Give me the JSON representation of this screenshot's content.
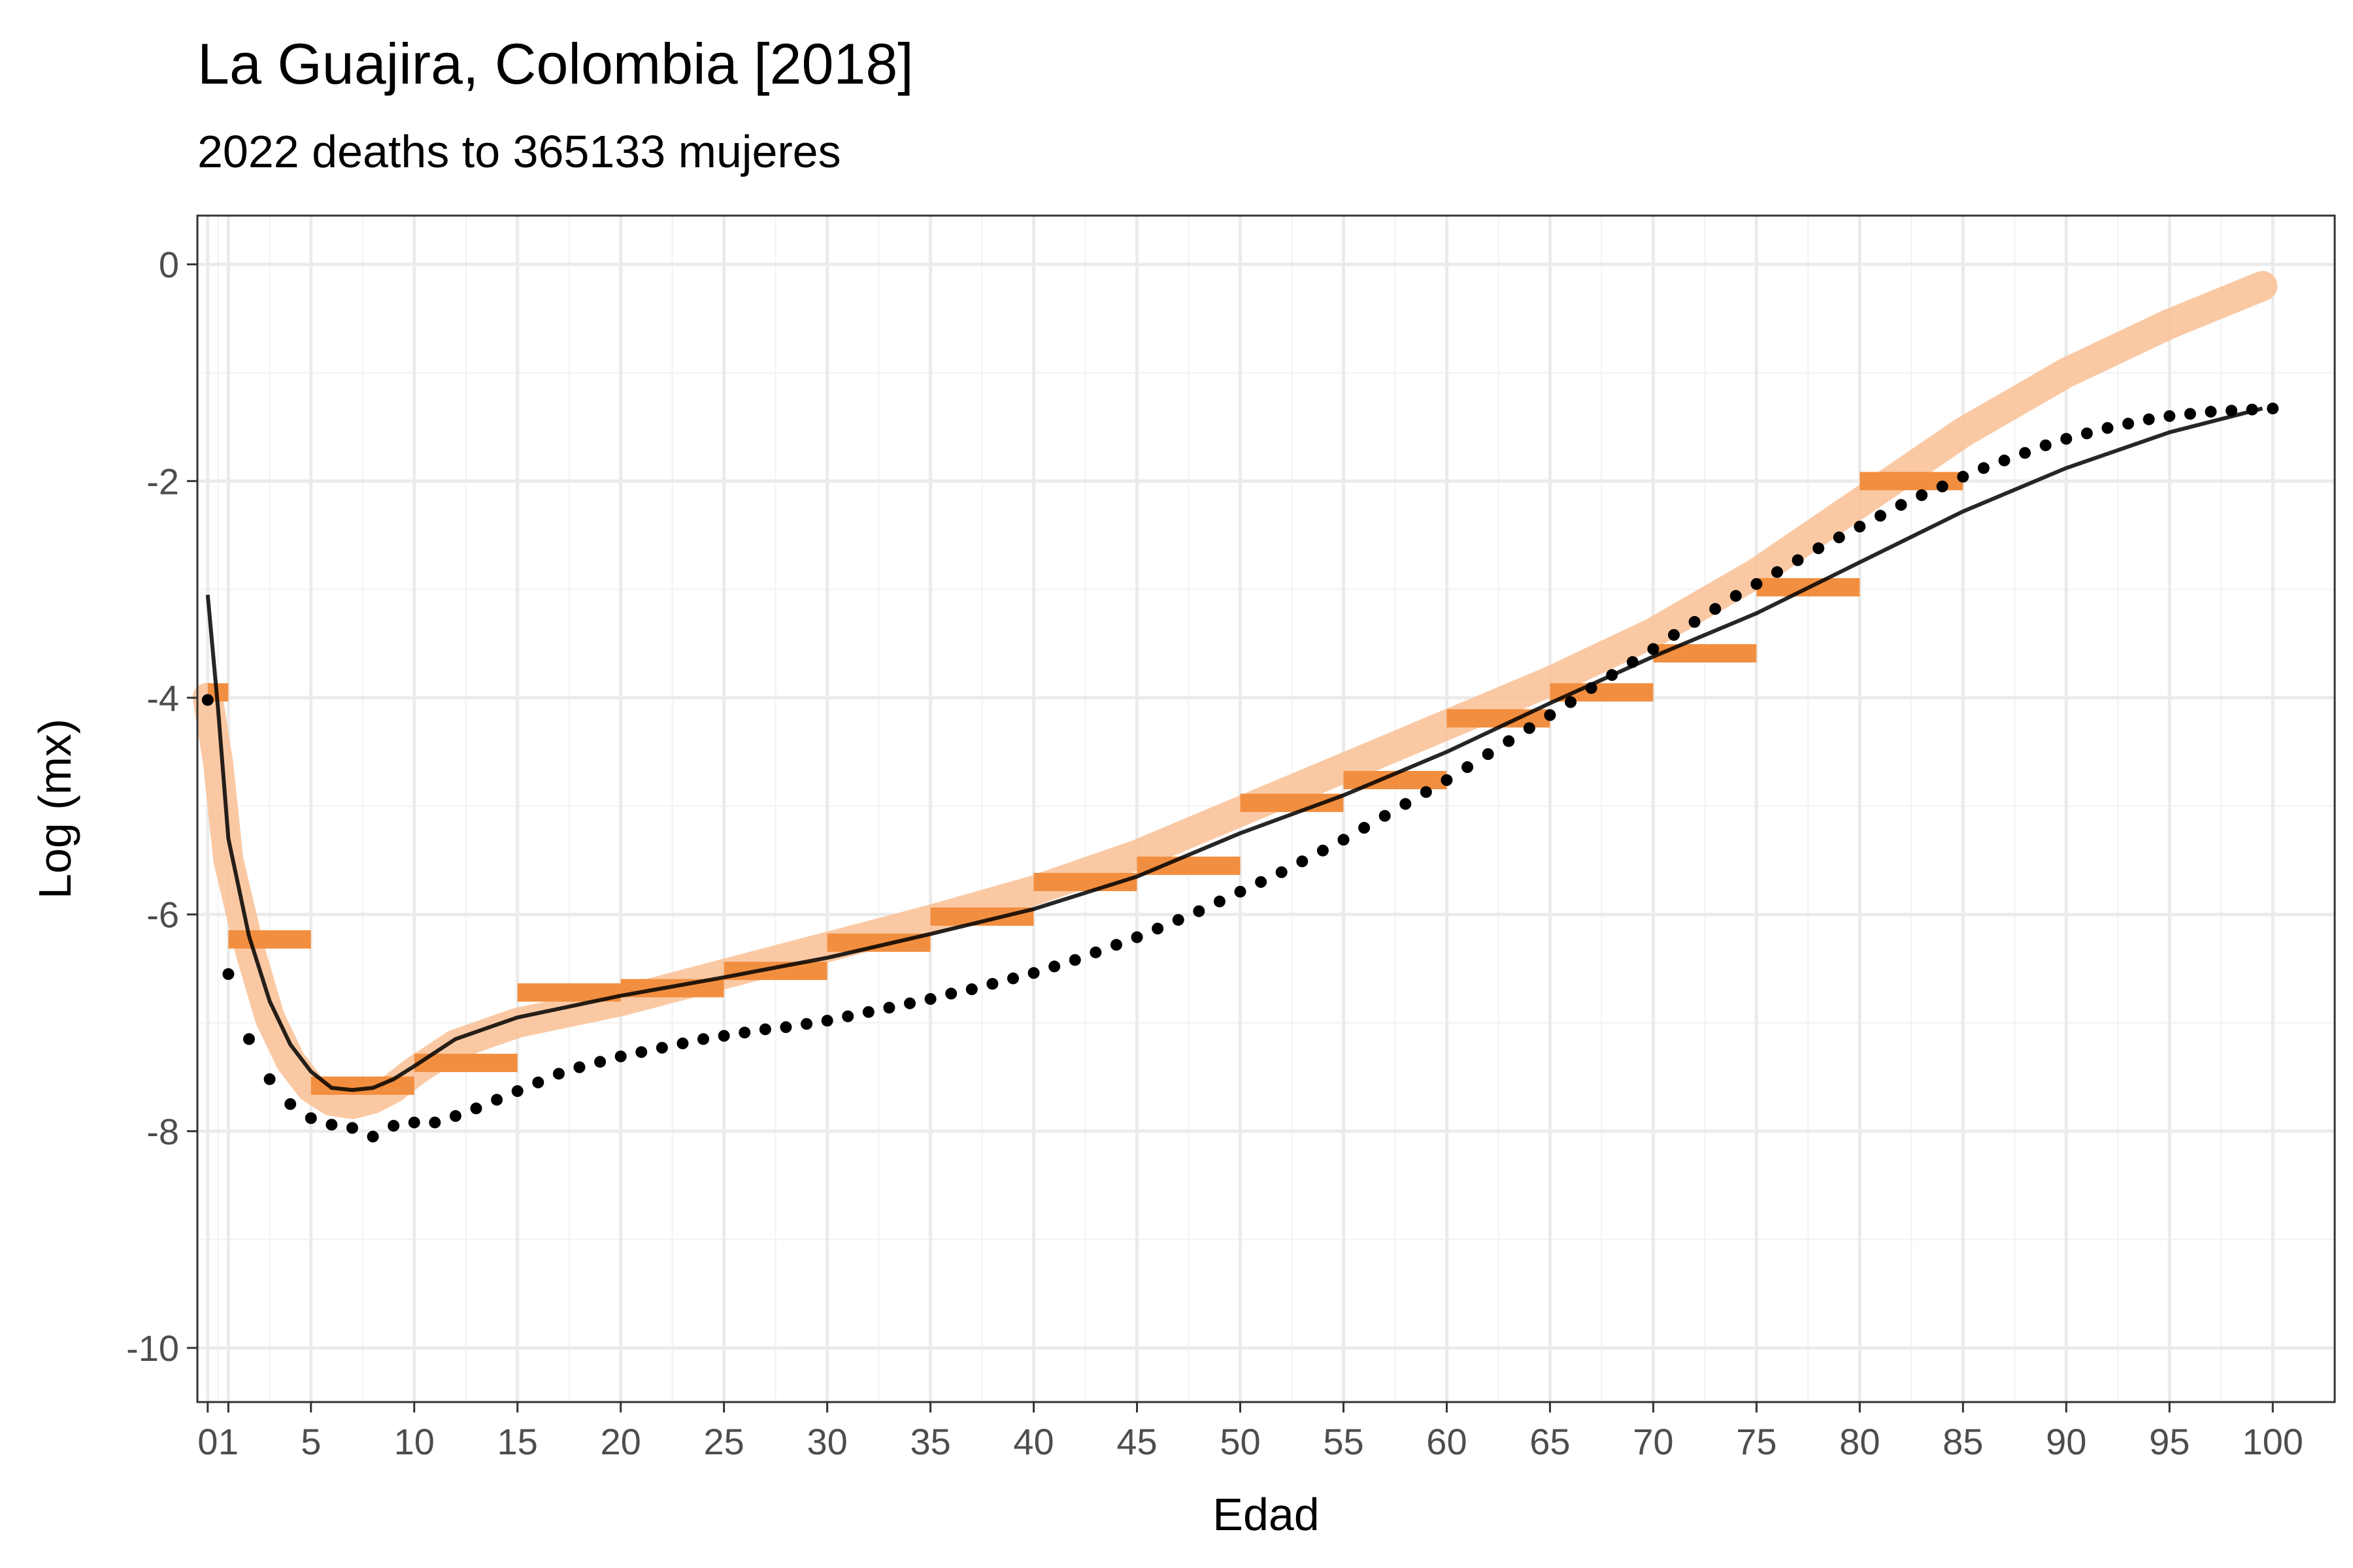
{
  "chart_data": {
    "type": "line",
    "title": "La Guajira, Colombia [2018]",
    "subtitle": "2022 deaths to 365133 mujeres",
    "xlabel": "Edad",
    "ylabel": "Log (mx)",
    "xlim": [
      -0.5,
      103
    ],
    "ylim": [
      -10.5,
      0.45
    ],
    "x_ticks": [
      0,
      1,
      5,
      10,
      15,
      20,
      25,
      30,
      35,
      40,
      45,
      50,
      55,
      60,
      65,
      70,
      75,
      80,
      85,
      90,
      95,
      100
    ],
    "x_tick_labels": [
      "0",
      "1",
      "5",
      "10",
      "15",
      "20",
      "25",
      "30",
      "35",
      "40",
      "45",
      "50",
      "55",
      "60",
      "65",
      "70",
      "75",
      "80",
      "85",
      "90",
      "95",
      "100"
    ],
    "y_ticks": [
      0,
      -2,
      -4,
      -6,
      -8,
      -10
    ],
    "y_tick_labels": [
      "0",
      "-2",
      "-4",
      "-6",
      "-8",
      "-10"
    ],
    "grid": true,
    "colors": {
      "observed_steps": "#f28e3f",
      "smooth_band": "#f9c39a",
      "fitted_line": "#000000",
      "dotted_series": "#000000"
    },
    "series": [
      {
        "style": "steps",
        "segments": [
          {
            "x0": 0,
            "x1": 1,
            "y": -3.95
          },
          {
            "x0": 1,
            "x1": 5,
            "y": -6.23
          },
          {
            "x0": 5,
            "x1": 10,
            "y": -7.58
          },
          {
            "x0": 10,
            "x1": 15,
            "y": -7.37
          },
          {
            "x0": 15,
            "x1": 20,
            "y": -6.72
          },
          {
            "x0": 20,
            "x1": 25,
            "y": -6.68
          },
          {
            "x0": 25,
            "x1": 30,
            "y": -6.52
          },
          {
            "x0": 30,
            "x1": 35,
            "y": -6.26
          },
          {
            "x0": 35,
            "x1": 40,
            "y": -6.02
          },
          {
            "x0": 40,
            "x1": 45,
            "y": -5.7
          },
          {
            "x0": 45,
            "x1": 50,
            "y": -5.55
          },
          {
            "x0": 50,
            "x1": 55,
            "y": -4.97
          },
          {
            "x0": 55,
            "x1": 60,
            "y": -4.76
          },
          {
            "x0": 60,
            "x1": 65,
            "y": -4.19
          },
          {
            "x0": 65,
            "x1": 70,
            "y": -3.95
          },
          {
            "x0": 70,
            "x1": 75,
            "y": -3.59
          },
          {
            "x0": 75,
            "x1": 80,
            "y": -2.98
          },
          {
            "x0": 80,
            "x1": 85,
            "y": -2.0
          }
        ]
      },
      {
        "style": "band",
        "x": [
          0,
          0.5,
          1,
          2,
          3,
          4,
          5,
          6,
          7,
          8,
          9,
          10,
          12,
          15,
          20,
          25,
          30,
          35,
          40,
          45,
          50,
          55,
          60,
          65,
          70,
          75,
          80,
          85,
          90,
          95,
          99.5
        ],
        "y": [
          -4.0,
          -4.6,
          -5.5,
          -6.3,
          -6.95,
          -7.35,
          -7.6,
          -7.72,
          -7.75,
          -7.7,
          -7.6,
          -7.45,
          -7.2,
          -7.0,
          -6.8,
          -6.55,
          -6.3,
          -6.05,
          -5.78,
          -5.45,
          -5.05,
          -4.65,
          -4.25,
          -3.85,
          -3.4,
          -2.85,
          -2.2,
          -1.55,
          -1.0,
          -0.55,
          -0.2
        ]
      },
      {
        "style": "line",
        "x": [
          0,
          0.5,
          1,
          2,
          3,
          4,
          5,
          6,
          7,
          8,
          9,
          10,
          12,
          15,
          20,
          25,
          30,
          35,
          40,
          45,
          50,
          55,
          60,
          65,
          70,
          75,
          80,
          85,
          90,
          95,
          99.5
        ],
        "y": [
          -3.05,
          -4.1,
          -5.3,
          -6.2,
          -6.8,
          -7.2,
          -7.45,
          -7.6,
          -7.62,
          -7.6,
          -7.52,
          -7.4,
          -7.15,
          -6.95,
          -6.75,
          -6.58,
          -6.4,
          -6.18,
          -5.95,
          -5.65,
          -5.25,
          -4.9,
          -4.5,
          -4.05,
          -3.62,
          -3.22,
          -2.75,
          -2.28,
          -1.88,
          -1.55,
          -1.33
        ]
      },
      {
        "style": "dots",
        "x": [
          0,
          1,
          2,
          3,
          4,
          5,
          6,
          7,
          8,
          9,
          10,
          11,
          12,
          13,
          14,
          15,
          16,
          17,
          18,
          19,
          20,
          21,
          22,
          23,
          24,
          25,
          26,
          27,
          28,
          29,
          30,
          31,
          32,
          33,
          34,
          35,
          36,
          37,
          38,
          39,
          40,
          41,
          42,
          43,
          44,
          45,
          46,
          47,
          48,
          49,
          50,
          51,
          52,
          53,
          54,
          55,
          56,
          57,
          58,
          59,
          60,
          61,
          62,
          63,
          64,
          65,
          66,
          67,
          68,
          69,
          70,
          71,
          72,
          73,
          74,
          75,
          76,
          77,
          78,
          79,
          80,
          81,
          82,
          83,
          84,
          85,
          86,
          87,
          88,
          89,
          90,
          91,
          92,
          93,
          94,
          95,
          96,
          97,
          98,
          99,
          100
        ],
        "y": [
          -4.02,
          -6.55,
          -7.15,
          -7.52,
          -7.75,
          -7.88,
          -7.94,
          -7.97,
          -8.05,
          -7.95,
          -7.92,
          -7.92,
          -7.86,
          -7.79,
          -7.71,
          -7.63,
          -7.55,
          -7.47,
          -7.41,
          -7.36,
          -7.31,
          -7.27,
          -7.23,
          -7.19,
          -7.15,
          -7.12,
          -7.09,
          -7.06,
          -7.04,
          -7.01,
          -6.98,
          -6.94,
          -6.9,
          -6.86,
          -6.82,
          -6.78,
          -6.73,
          -6.69,
          -6.64,
          -6.59,
          -6.54,
          -6.48,
          -6.42,
          -6.35,
          -6.28,
          -6.21,
          -6.13,
          -6.05,
          -5.97,
          -5.88,
          -5.79,
          -5.7,
          -5.61,
          -5.51,
          -5.41,
          -5.31,
          -5.2,
          -5.09,
          -4.98,
          -4.87,
          -4.76,
          -4.64,
          -4.52,
          -4.4,
          -4.28,
          -4.16,
          -4.04,
          -3.91,
          -3.79,
          -3.67,
          -3.55,
          -3.42,
          -3.3,
          -3.18,
          -3.06,
          -2.95,
          -2.84,
          -2.73,
          -2.62,
          -2.52,
          -2.42,
          -2.32,
          -2.22,
          -2.13,
          -2.05,
          -1.96,
          -1.88,
          -1.81,
          -1.74,
          -1.67,
          -1.61,
          -1.56,
          -1.51,
          -1.47,
          -1.43,
          -1.4,
          -1.38,
          -1.36,
          -1.35,
          -1.34,
          -1.33
        ]
      }
    ]
  }
}
